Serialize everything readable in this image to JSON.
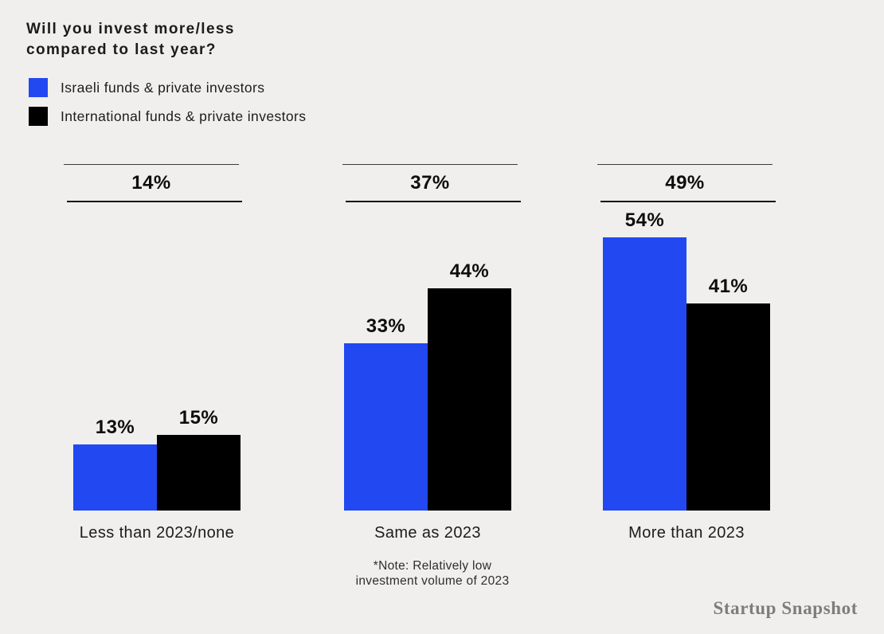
{
  "header": {
    "title_line1": "Will you invest more/less",
    "title_line2": "compared to last year?"
  },
  "chart_data": {
    "type": "bar",
    "title": "Will you invest more/less compared to last year?",
    "categories": [
      "Less than 2023/none",
      "Same as 2023",
      "More than 2023"
    ],
    "group_totals": [
      "14%",
      "37%",
      "49%"
    ],
    "series": [
      {
        "name": "Israeli funds & private investors",
        "color": "#2248f2",
        "values": [
          13,
          33,
          54
        ],
        "labels": [
          "13%",
          "33%",
          "54%"
        ]
      },
      {
        "name": "International funds & private investors",
        "color": "#000000",
        "values": [
          15,
          44,
          41
        ],
        "labels": [
          "15%",
          "44%",
          "41%"
        ]
      }
    ],
    "unit": "%",
    "ylim": [
      0,
      60
    ],
    "grid": false,
    "legend_position": "top-left",
    "footnote": "*Note: Relatively low investment volume of 2023"
  },
  "footnote": {
    "line1": "*Note: Relatively low",
    "line2": "investment volume of 2023"
  },
  "footer": {
    "brand": "Startup Snapshot"
  },
  "colors": {
    "background": "#f0efed",
    "israeli_blue": "#2248f2",
    "international_black": "#000000",
    "text": "#1c1c1c",
    "brand_text": "#7e7d7b"
  }
}
